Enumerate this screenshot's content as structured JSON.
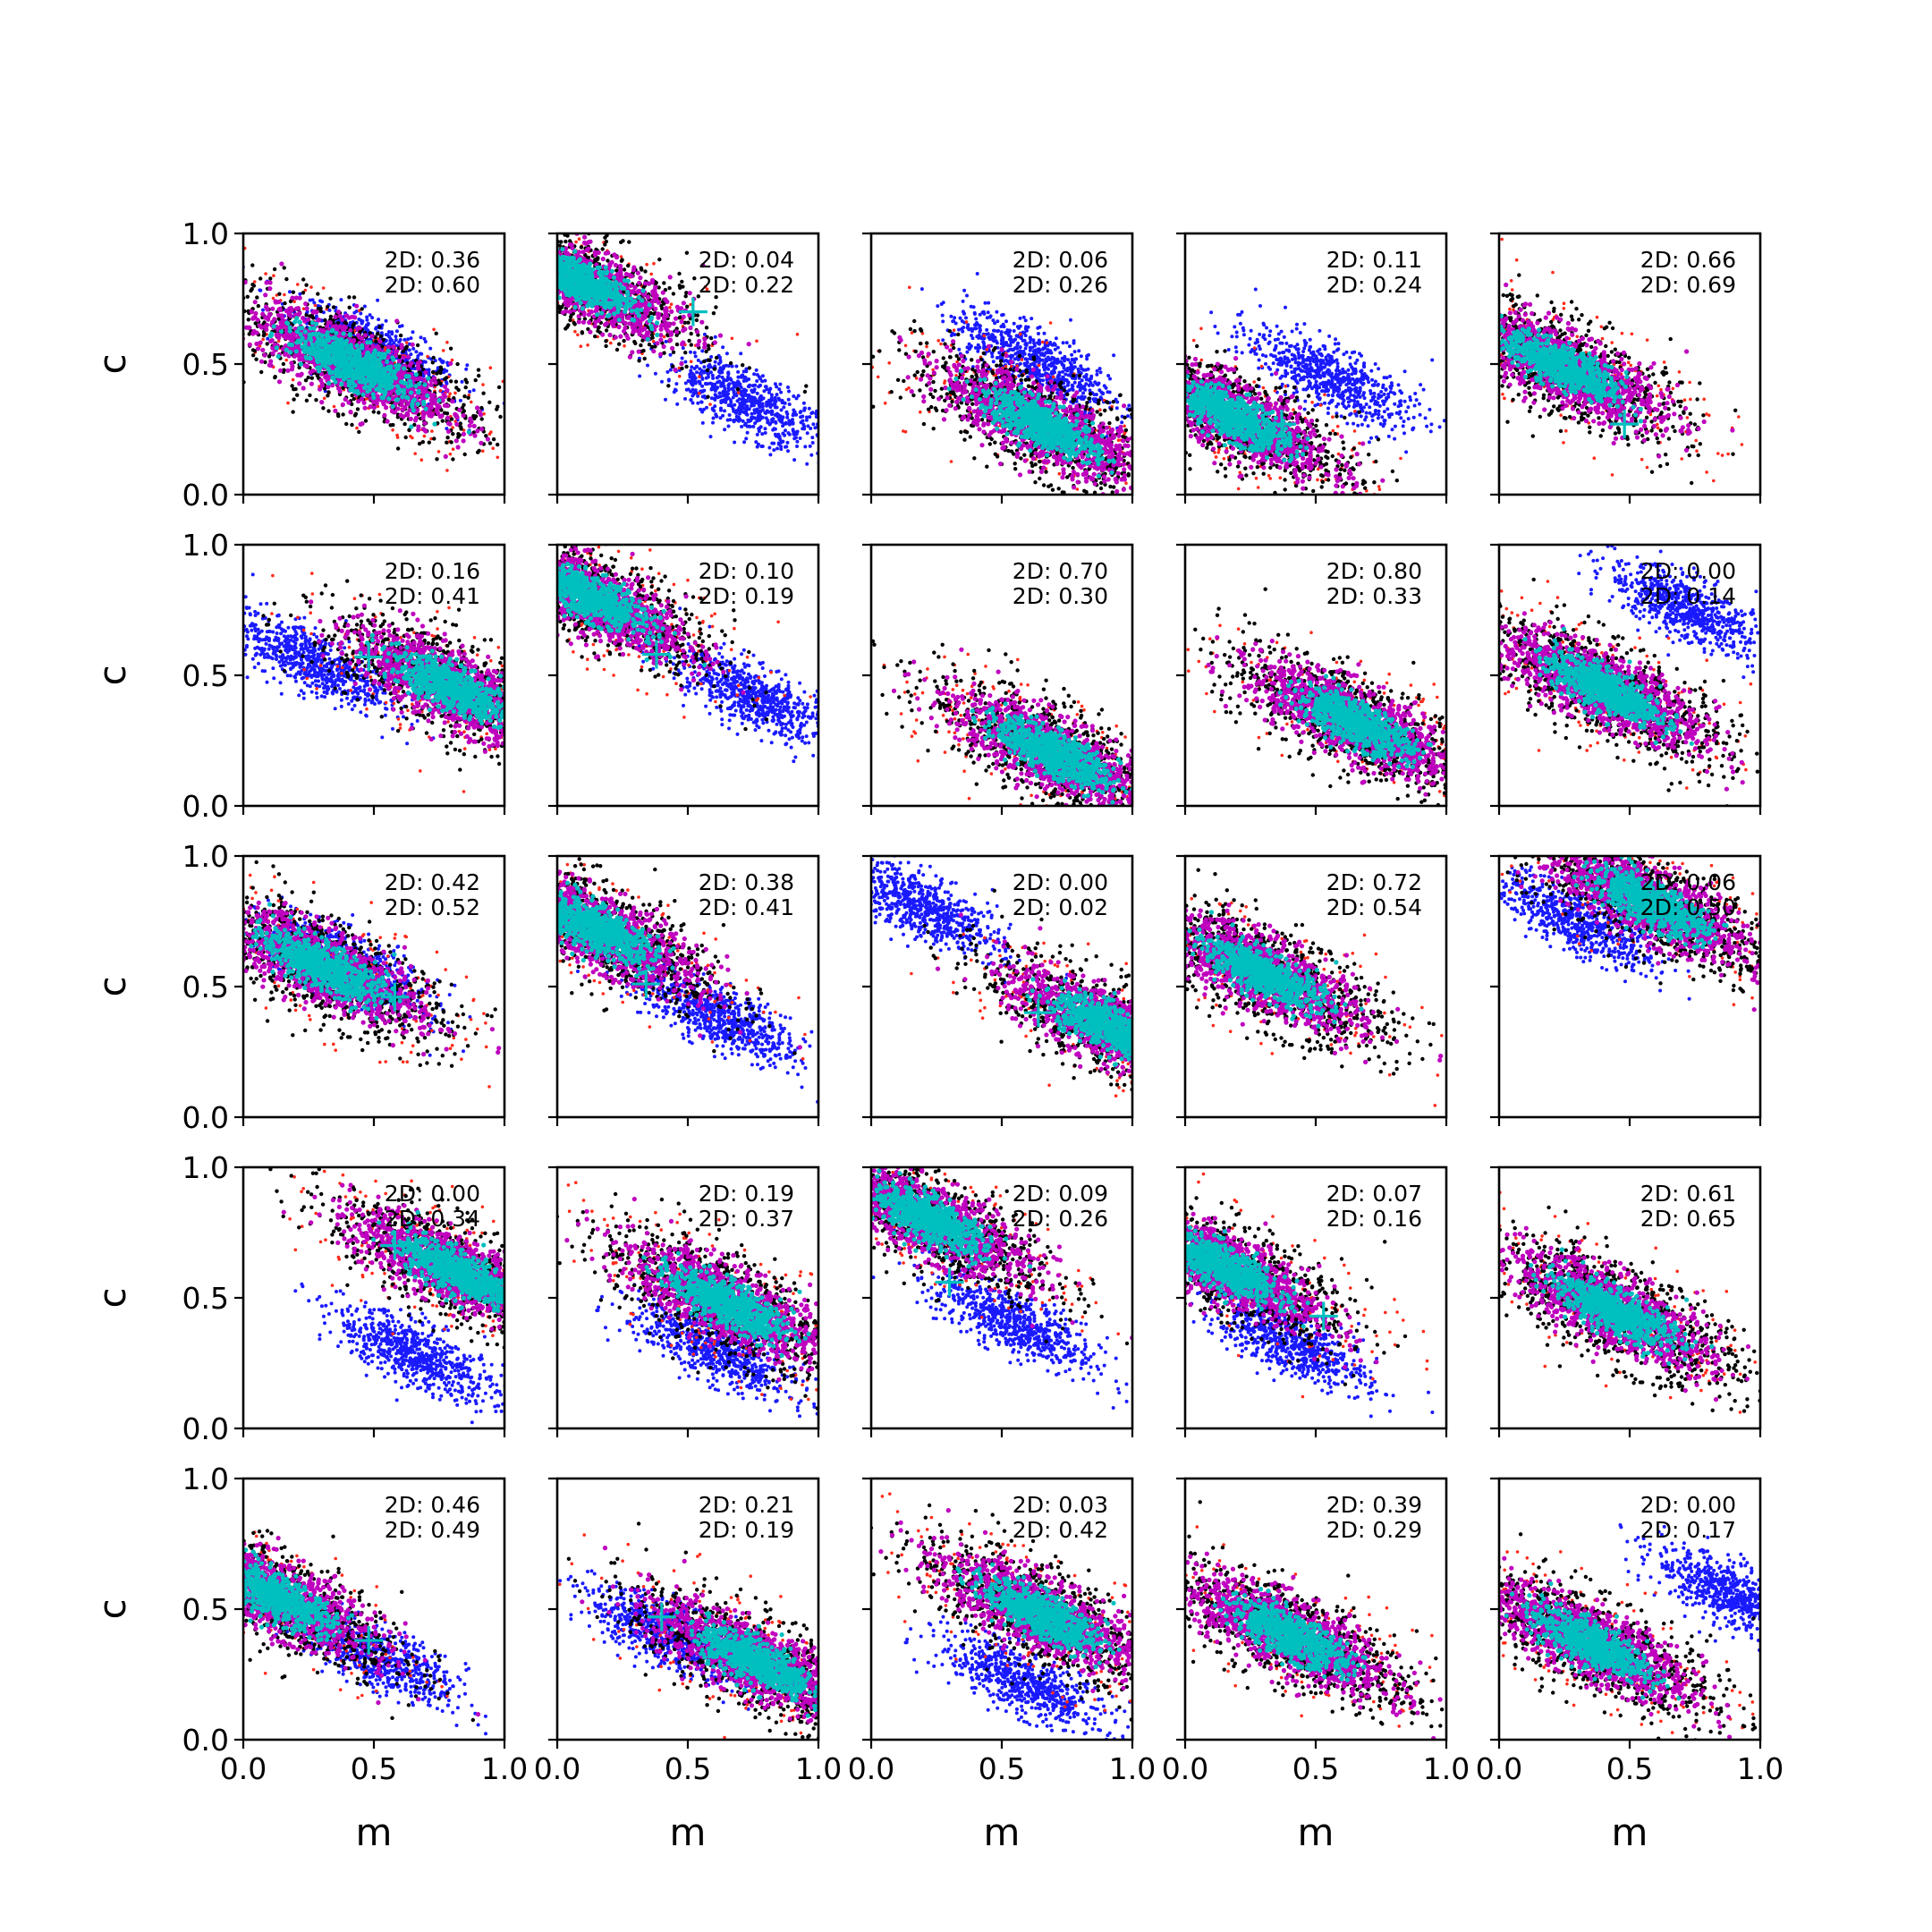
{
  "colors": {
    "background": "#ffffff",
    "red_cloud": "#ff2a1a",
    "black_cloud": "#000000",
    "magenta_core": "#bf00bf",
    "cyan_core": "#00bfbf",
    "blue_cloud": "#1a1aff",
    "truth_marker": "#00bfbf",
    "axes": "#000000"
  },
  "chart_data": {
    "type": "scatter",
    "layout": "5x5 grid of panels, shared axes",
    "xlabel": "m",
    "ylabel": "c",
    "xlim": [
      0,
      1
    ],
    "ylim": [
      0,
      1
    ],
    "xticks": [
      "0.0",
      "0.5",
      "1.0"
    ],
    "yticks": [
      "0.0",
      "0.5",
      "1.0"
    ],
    "grid": false,
    "legend": "none",
    "series_description": [
      "red points",
      "black points",
      "magenta points",
      "cyan points",
      "blue points",
      "cyan + marker"
    ],
    "panels": [
      {
        "annotations": [
          "2D: 0.36",
          "2D: 0.60"
        ],
        "main": [
          0.42,
          0.5
        ],
        "blue": [
          0.5,
          0.55
        ],
        "marker": null
      },
      {
        "annotations": [
          "2D: 0.04",
          "2D: 0.22"
        ],
        "main": [
          0.08,
          0.82
        ],
        "blue": [
          0.72,
          0.36
        ],
        "marker": [
          0.52,
          0.7
        ]
      },
      {
        "annotations": [
          "2D: 0.06",
          "2D: 0.26"
        ],
        "main": [
          0.65,
          0.27
        ],
        "blue": [
          0.62,
          0.52
        ],
        "marker": null
      },
      {
        "annotations": [
          "2D: 0.11",
          "2D: 0.24"
        ],
        "main": [
          0.18,
          0.3
        ],
        "blue": [
          0.55,
          0.45
        ],
        "marker": [
          0.37,
          0.27
        ]
      },
      {
        "annotations": [
          "2D: 0.66",
          "2D: 0.69"
        ],
        "main": [
          0.24,
          0.49
        ],
        "blue": null,
        "marker": [
          0.48,
          0.27
        ]
      },
      {
        "annotations": [
          "2D: 0.16",
          "2D: 0.41"
        ],
        "main": [
          0.8,
          0.45
        ],
        "blue": [
          0.25,
          0.56
        ],
        "marker": [
          0.48,
          0.57
        ]
      },
      {
        "annotations": [
          "2D: 0.10",
          "2D: 0.19"
        ],
        "main": [
          0.12,
          0.8
        ],
        "blue": [
          0.75,
          0.42
        ],
        "marker": [
          0.38,
          0.58
        ]
      },
      {
        "annotations": [
          "2D: 0.70",
          "2D: 0.30"
        ],
        "main": [
          0.7,
          0.2
        ],
        "blue": null,
        "marker": [
          0.55,
          0.25
        ]
      },
      {
        "annotations": [
          "2D: 0.80",
          "2D: 0.33"
        ],
        "main": [
          0.65,
          0.32
        ],
        "blue": null,
        "marker": null
      },
      {
        "annotations": [
          "2D: 0.00",
          "2D: 0.14"
        ],
        "main": [
          0.4,
          0.45
        ],
        "blue": [
          0.72,
          0.75
        ],
        "marker": null
      },
      {
        "annotations": [
          "2D: 0.42",
          "2D: 0.52"
        ],
        "main": [
          0.3,
          0.58
        ],
        "blue": [
          0.4,
          0.58
        ],
        "marker": [
          0.58,
          0.46
        ]
      },
      {
        "annotations": [
          "2D: 0.38",
          "2D: 0.41"
        ],
        "main": [
          0.15,
          0.72
        ],
        "blue": [
          0.62,
          0.38
        ],
        "marker": [
          0.34,
          0.51
        ]
      },
      {
        "annotations": [
          "2D: 0.00",
          "2D: 0.02"
        ],
        "main": [
          0.92,
          0.34
        ],
        "blue": [
          0.2,
          0.8
        ],
        "marker": [
          0.64,
          0.4
        ]
      },
      {
        "annotations": [
          "2D: 0.72",
          "2D: 0.54"
        ],
        "main": [
          0.3,
          0.55
        ],
        "blue": null,
        "marker": null
      },
      {
        "annotations": [
          "2D: 0.06",
          "2D: 0.50"
        ],
        "main": [
          0.58,
          0.82
        ],
        "blue": [
          0.3,
          0.75
        ],
        "marker": null
      },
      {
        "annotations": [
          "2D: 0.00",
          "2D: 0.34"
        ],
        "main": [
          0.82,
          0.6
        ],
        "blue": [
          0.66,
          0.28
        ],
        "marker": [
          0.58,
          0.7
        ]
      },
      {
        "annotations": [
          "2D: 0.19",
          "2D: 0.37"
        ],
        "main": [
          0.65,
          0.48
        ],
        "blue": [
          0.6,
          0.3
        ],
        "marker": null
      },
      {
        "annotations": [
          "2D: 0.09",
          "2D: 0.26"
        ],
        "main": [
          0.22,
          0.8
        ],
        "blue": [
          0.55,
          0.4
        ],
        "marker": [
          0.3,
          0.56
        ]
      },
      {
        "annotations": [
          "2D: 0.07",
          "2D: 0.16"
        ],
        "main": [
          0.14,
          0.62
        ],
        "blue": [
          0.4,
          0.33
        ],
        "marker": [
          0.53,
          0.43
        ]
      },
      {
        "annotations": [
          "2D: 0.61",
          "2D: 0.65"
        ],
        "main": [
          0.44,
          0.45
        ],
        "blue": null,
        "marker": null
      },
      {
        "annotations": [
          "2D: 0.46",
          "2D: 0.49"
        ],
        "main": [
          0.12,
          0.55
        ],
        "blue": [
          0.5,
          0.32
        ],
        "marker": [
          0.48,
          0.38
        ]
      },
      {
        "annotations": [
          "2D: 0.21",
          "2D: 0.19"
        ],
        "main": [
          0.76,
          0.3
        ],
        "blue": [
          0.42,
          0.4
        ],
        "marker": [
          0.4,
          0.47
        ]
      },
      {
        "annotations": [
          "2D: 0.03",
          "2D: 0.42"
        ],
        "main": [
          0.65,
          0.48
        ],
        "blue": [
          0.58,
          0.22
        ],
        "marker": null
      },
      {
        "annotations": [
          "2D: 0.39",
          "2D: 0.29"
        ],
        "main": [
          0.4,
          0.4
        ],
        "blue": null,
        "marker": null
      },
      {
        "annotations": [
          "2D: 0.00",
          "2D: 0.17"
        ],
        "main": [
          0.35,
          0.37
        ],
        "blue": [
          0.9,
          0.55
        ],
        "marker": null
      }
    ]
  }
}
